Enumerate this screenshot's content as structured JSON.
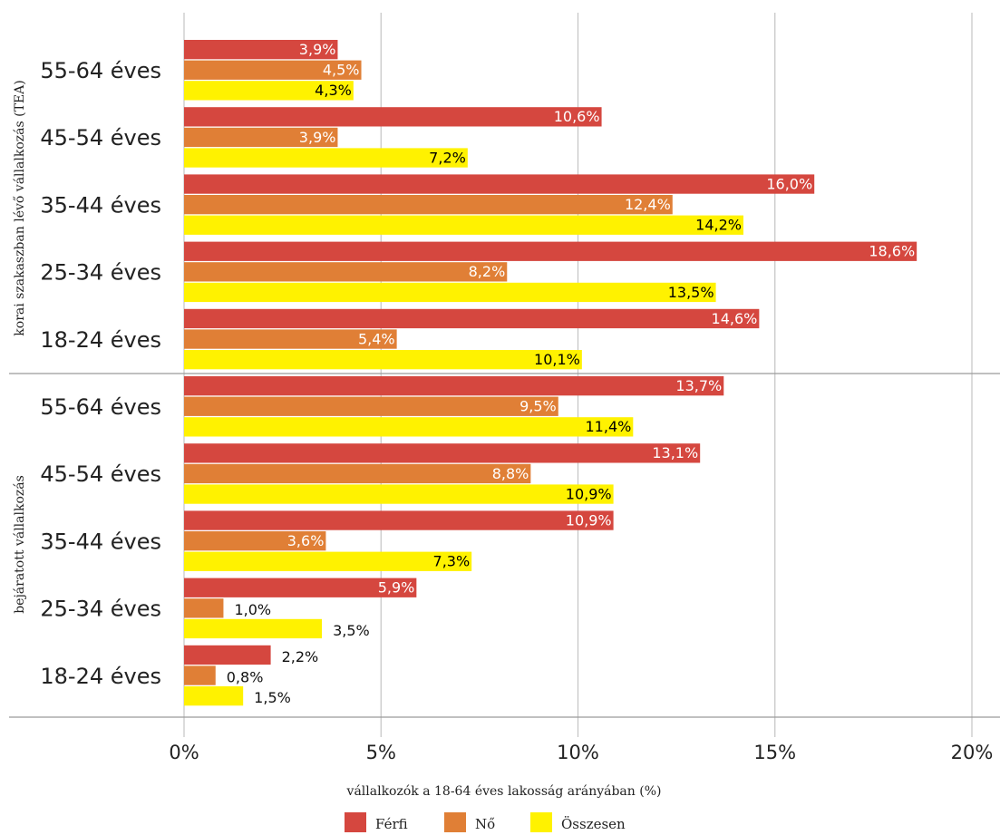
{
  "chart_data": {
    "type": "bar",
    "orientation": "horizontal",
    "xlabel": "vállalkozók a 18-64 éves lakosság arányában (%)",
    "xlim": [
      0,
      20
    ],
    "xticks": [
      0,
      5,
      10,
      15,
      20
    ],
    "xtick_labels": [
      "0%",
      "5%",
      "10%",
      "15%",
      "20%"
    ],
    "grid": "vertical",
    "legend_position": "bottom",
    "colors": {
      "Férfi": "#d5473f",
      "Nő": "#e07f36",
      "Összesen": "#fff200"
    },
    "series_names": [
      "Férfi",
      "Nő",
      "Összesen"
    ],
    "groups": [
      {
        "label": "korai szakaszban lévő vállalkozás (TEA)",
        "categories": [
          {
            "label": "55-64 éves",
            "values": [
              3.9,
              4.5,
              4.3
            ],
            "value_labels": [
              "3,9%",
              "4,5%",
              "4,3%"
            ]
          },
          {
            "label": "45-54 éves",
            "values": [
              10.6,
              3.9,
              7.2
            ],
            "value_labels": [
              "10,6%",
              "3,9%",
              "7,2%"
            ]
          },
          {
            "label": "35-44 éves",
            "values": [
              16.0,
              12.4,
              14.2
            ],
            "value_labels": [
              "16,0%",
              "12,4%",
              "14,2%"
            ]
          },
          {
            "label": "25-34 éves",
            "values": [
              18.6,
              8.2,
              13.5
            ],
            "value_labels": [
              "18,6%",
              "8,2%",
              "13,5%"
            ]
          },
          {
            "label": "18-24 éves",
            "values": [
              14.6,
              5.4,
              10.1
            ],
            "value_labels": [
              "14,6%",
              "5,4%",
              "10,1%"
            ]
          }
        ]
      },
      {
        "label": "bejáratott vállalkozás",
        "categories": [
          {
            "label": "55-64 éves",
            "values": [
              13.7,
              9.5,
              11.4
            ],
            "value_labels": [
              "13,7%",
              "9,5%",
              "11,4%"
            ]
          },
          {
            "label": "45-54 éves",
            "values": [
              13.1,
              8.8,
              10.9
            ],
            "value_labels": [
              "13,1%",
              "8,8%",
              "10,9%"
            ]
          },
          {
            "label": "35-44 éves",
            "values": [
              10.9,
              3.6,
              7.3
            ],
            "value_labels": [
              "10,9%",
              "3,6%",
              "7,3%"
            ]
          },
          {
            "label": "25-34 éves",
            "values": [
              5.9,
              1.0,
              3.5
            ],
            "value_labels": [
              "5,9%",
              "1,0%",
              "3,5%"
            ]
          },
          {
            "label": "18-24 éves",
            "values": [
              2.2,
              0.8,
              1.5
            ],
            "value_labels": [
              "2,2%",
              "0,8%",
              "1,5%"
            ]
          }
        ]
      }
    ]
  }
}
